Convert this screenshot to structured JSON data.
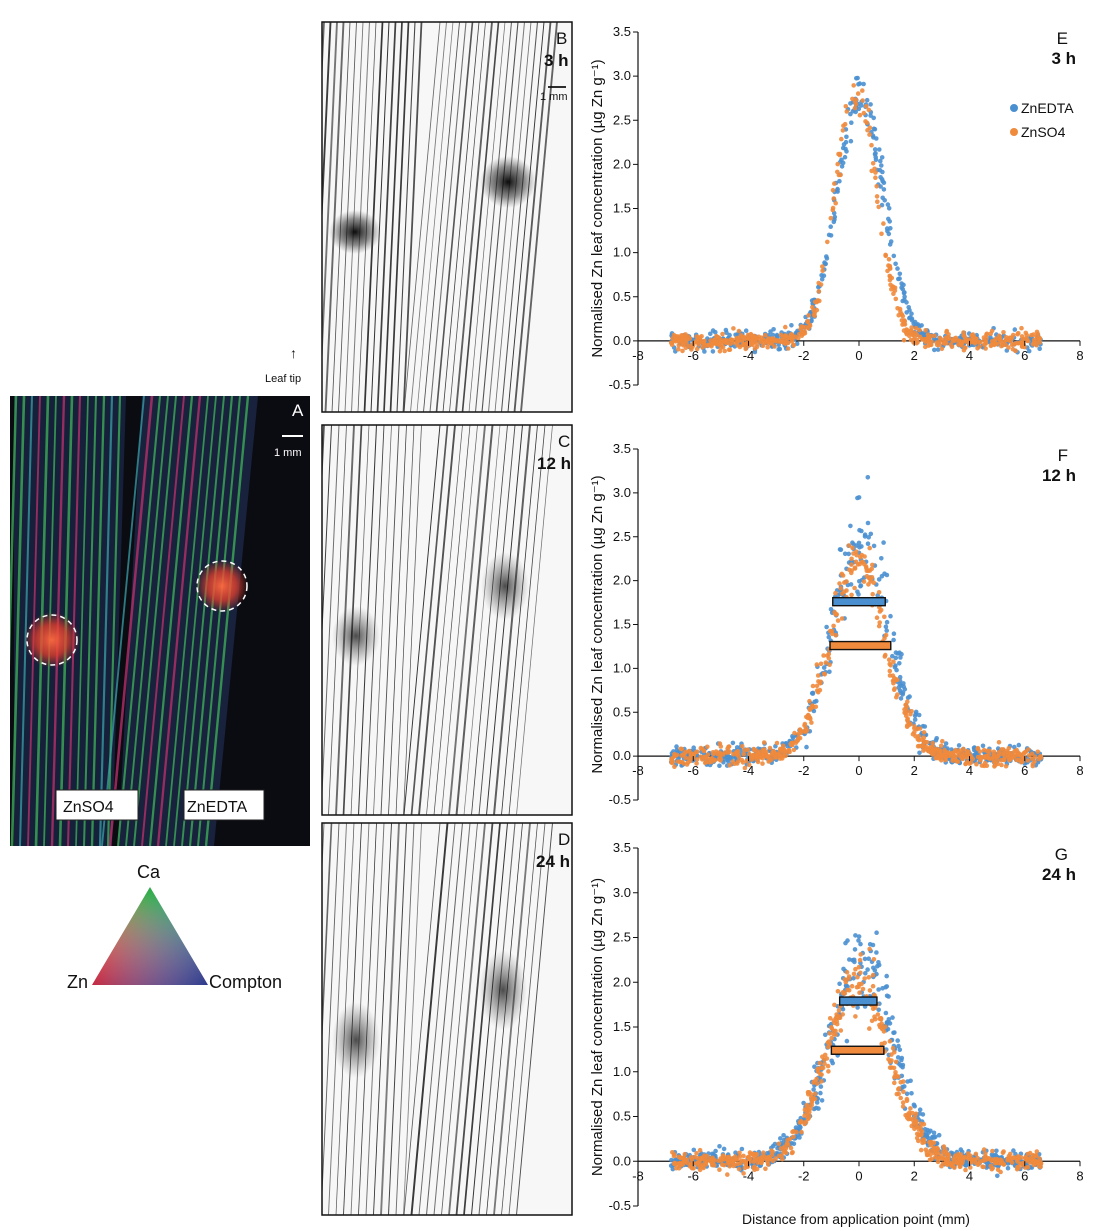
{
  "panel_a": {
    "letter": "A",
    "scale_bar": "1 mm",
    "leaf_tip": "Leaf tip",
    "label_left": "ZnSO4",
    "label_right": "ZnEDTA"
  },
  "ternary": {
    "top": "Ca",
    "left": "Zn",
    "right": "Compton"
  },
  "xray_panels": [
    {
      "letter": "B",
      "time": "3 h",
      "scale_bar": "1 mm"
    },
    {
      "letter": "C",
      "time": "12 h"
    },
    {
      "letter": "D",
      "time": "24 h"
    }
  ],
  "x_axis_label": "Distance from application point (mm)",
  "legend": [
    "ZnEDTA",
    "ZnSO4"
  ],
  "colors": {
    "ZnEDTA": "#4a90d0",
    "ZnSO4": "#f08a3c",
    "leaf_green": "#3fb45a",
    "leaf_magenta": "#c2306e",
    "zn_spot": "#e8402f"
  },
  "chart_data": [
    {
      "type": "scatter",
      "panel": "E",
      "time": "3 h",
      "ylabel": "Normalised Zn leaf concentration (µg Zn g⁻¹)",
      "xlim": [
        -8,
        8
      ],
      "ylim": [
        -0.5,
        3.5
      ],
      "xticks": [
        -8,
        -6,
        -4,
        -2,
        0,
        2,
        4,
        6,
        8
      ],
      "yticks": [
        -0.5,
        0.0,
        0.5,
        1.0,
        1.5,
        2.0,
        2.5,
        3.0,
        3.5
      ],
      "series": [
        {
          "name": "ZnEDTA",
          "x_range": [
            -6.8,
            6.6
          ],
          "peak": 2.75,
          "center": 0.05,
          "width": 0.85,
          "noise": 0.08,
          "n": 520
        },
        {
          "name": "ZnSO4",
          "x_range": [
            -6.8,
            6.6
          ],
          "peak": 2.85,
          "center": -0.1,
          "width": 0.75,
          "noise": 0.08,
          "n": 520
        }
      ],
      "bars": []
    },
    {
      "type": "scatter",
      "panel": "F",
      "time": "12 h",
      "ylabel": "Normalised Zn leaf concentration (µg Zn g⁻¹)",
      "xlim": [
        -8,
        8
      ],
      "ylim": [
        -0.5,
        3.5
      ],
      "xticks": [
        -8,
        -6,
        -4,
        -2,
        0,
        2,
        4,
        6,
        8
      ],
      "yticks": [
        -0.5,
        0.0,
        0.5,
        1.0,
        1.5,
        2.0,
        2.5,
        3.0,
        3.5
      ],
      "series": [
        {
          "name": "ZnEDTA",
          "x_range": [
            -6.8,
            6.6
          ],
          "peak": 2.4,
          "center": 0.05,
          "width": 1.05,
          "noise": 0.25,
          "n": 560
        },
        {
          "name": "ZnSO4",
          "x_range": [
            -6.8,
            6.6
          ],
          "peak": 2.2,
          "center": -0.05,
          "width": 1.0,
          "noise": 0.12,
          "n": 560
        }
      ],
      "bars": [
        {
          "series": "ZnEDTA",
          "x_start": -0.95,
          "x_end": 0.95,
          "y": 1.76
        },
        {
          "series": "ZnSO4",
          "x_start": -1.05,
          "x_end": 1.15,
          "y": 1.26
        }
      ]
    },
    {
      "type": "scatter",
      "panel": "G",
      "time": "24 h",
      "ylabel": "Normalised Zn leaf concentration (µg Zn g⁻¹)",
      "xlim": [
        -8,
        8
      ],
      "ylim": [
        -0.5,
        3.5
      ],
      "xticks": [
        -8,
        -6,
        -4,
        -2,
        0,
        2,
        4,
        6,
        8
      ],
      "yticks": [
        -0.5,
        0.0,
        0.5,
        1.0,
        1.5,
        2.0,
        2.5,
        3.0,
        3.5
      ],
      "series": [
        {
          "name": "ZnEDTA",
          "x_range": [
            -6.8,
            6.6
          ],
          "peak": 2.15,
          "center": 0.1,
          "width": 1.2,
          "noise": 0.22,
          "n": 600
        },
        {
          "name": "ZnSO4",
          "x_range": [
            -6.8,
            6.6
          ],
          "peak": 2.0,
          "center": -0.05,
          "width": 1.15,
          "noise": 0.12,
          "n": 600
        }
      ],
      "bars": [
        {
          "series": "ZnEDTA",
          "x_start": -0.7,
          "x_end": 0.65,
          "y": 1.79
        },
        {
          "series": "ZnSO4",
          "x_start": -1.0,
          "x_end": 0.9,
          "y": 1.24
        }
      ]
    }
  ]
}
